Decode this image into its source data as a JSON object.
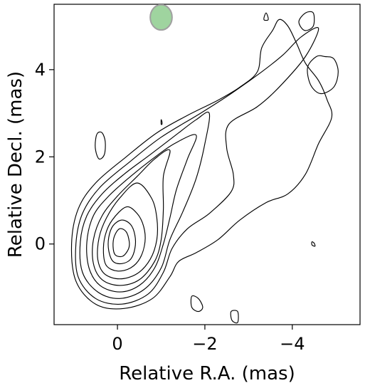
{
  "chart_data": {
    "type": "contour",
    "xlabel": "Relative R.A. (mas)",
    "ylabel": "Relative Decl. (mas)",
    "xlim": [
      1.45,
      -5.55
    ],
    "ylim": [
      -1.85,
      5.5
    ],
    "x_ticks": [
      0,
      -2,
      -4
    ],
    "x_tick_labels": [
      "0",
      "−2",
      "−4"
    ],
    "y_ticks": [
      0,
      2,
      4
    ],
    "y_tick_labels": [
      "0",
      "2",
      "4"
    ],
    "grid": false,
    "beam": {
      "x": -1.0,
      "y": 5.2,
      "major_mas": 0.58,
      "minor_mas": 0.5,
      "color": "#9fd49f",
      "edge_color": "#a0a0a0"
    },
    "core_contours": [
      [
        [
          -0.05,
          0.35
        ],
        [
          -0.2,
          0.28
        ],
        [
          -0.27,
          0.05
        ],
        [
          -0.25,
          -0.12
        ],
        [
          -0.12,
          -0.28
        ],
        [
          0.05,
          -0.25
        ],
        [
          0.1,
          -0.05
        ],
        [
          0.07,
          0.18
        ]
      ],
      [
        [
          -0.1,
          0.55
        ],
        [
          -0.3,
          0.45
        ],
        [
          -0.4,
          0.2
        ],
        [
          -0.4,
          -0.1
        ],
        [
          -0.3,
          -0.35
        ],
        [
          -0.1,
          -0.45
        ],
        [
          0.1,
          -0.4
        ],
        [
          0.2,
          -0.15
        ],
        [
          0.2,
          0.15
        ],
        [
          0.1,
          0.42
        ]
      ],
      [
        [
          -0.2,
          0.85
        ],
        [
          -0.45,
          0.7
        ],
        [
          -0.6,
          0.4
        ],
        [
          -0.63,
          0.05
        ],
        [
          -0.52,
          -0.32
        ],
        [
          -0.3,
          -0.55
        ],
        [
          0,
          -0.62
        ],
        [
          0.25,
          -0.5
        ],
        [
          0.32,
          -0.2
        ],
        [
          0.28,
          0.2
        ],
        [
          0.12,
          0.55
        ]
      ],
      [
        [
          -0.45,
          1.4
        ],
        [
          -0.78,
          1.05
        ],
        [
          -0.9,
          0.6
        ],
        [
          -0.9,
          0.1
        ],
        [
          -0.75,
          -0.35
        ],
        [
          -0.45,
          -0.68
        ],
        [
          -0.05,
          -0.8
        ],
        [
          0.3,
          -0.68
        ],
        [
          0.45,
          -0.35
        ],
        [
          0.42,
          0.15
        ],
        [
          0.25,
          0.6
        ],
        [
          -0.05,
          1.05
        ]
      ],
      [
        [
          -1.2,
          2.15
        ],
        [
          -1.05,
          1.55
        ],
        [
          -1.05,
          0.8
        ],
        [
          -1.0,
          0.1
        ],
        [
          -0.85,
          -0.4
        ],
        [
          -0.5,
          -0.82
        ],
        [
          -0.05,
          -0.95
        ],
        [
          0.35,
          -0.82
        ],
        [
          0.55,
          -0.45
        ],
        [
          0.55,
          0.1
        ],
        [
          0.35,
          0.65
        ],
        [
          0.0,
          1.1
        ],
        [
          -0.45,
          1.55
        ],
        [
          -0.85,
          1.95
        ]
      ],
      [
        [
          -1.8,
          2.5
        ],
        [
          -1.6,
          1.95
        ],
        [
          -1.35,
          1.25
        ],
        [
          -1.2,
          0.6
        ],
        [
          -1.05,
          0.0
        ],
        [
          -0.85,
          -0.55
        ],
        [
          -0.5,
          -0.95
        ],
        [
          -0.05,
          -1.1
        ],
        [
          0.4,
          -0.95
        ],
        [
          0.65,
          -0.55
        ],
        [
          0.7,
          0.05
        ],
        [
          0.55,
          0.65
        ],
        [
          0.2,
          1.1
        ],
        [
          -0.3,
          1.55
        ],
        [
          -0.8,
          1.95
        ],
        [
          -1.3,
          2.3
        ]
      ],
      [
        [
          -2.1,
          3.0
        ],
        [
          -2.0,
          2.3
        ],
        [
          -1.8,
          1.5
        ],
        [
          -1.5,
          0.75
        ],
        [
          -1.2,
          0.1
        ],
        [
          -1.0,
          -0.55
        ],
        [
          -0.6,
          -1.05
        ],
        [
          -0.05,
          -1.25
        ],
        [
          0.45,
          -1.1
        ],
        [
          0.8,
          -0.65
        ],
        [
          0.85,
          0.05
        ],
        [
          0.7,
          0.65
        ],
        [
          0.35,
          1.15
        ],
        [
          -0.15,
          1.6
        ],
        [
          -0.75,
          2.05
        ],
        [
          -1.4,
          2.55
        ],
        [
          -1.8,
          2.85
        ]
      ],
      [
        [
          -4.6,
          4.95
        ],
        [
          -4.3,
          4.3
        ],
        [
          -3.7,
          3.6
        ],
        [
          -3.2,
          3.15
        ],
        [
          -2.55,
          2.75
        ],
        [
          -2.5,
          2.2
        ],
        [
          -2.65,
          1.6
        ],
        [
          -2.6,
          1.2
        ],
        [
          -2.1,
          0.7
        ],
        [
          -1.6,
          0.35
        ],
        [
          -1.25,
          -0.1
        ],
        [
          -1.05,
          -0.65
        ],
        [
          -0.7,
          -1.15
        ],
        [
          -0.1,
          -1.38
        ],
        [
          0.5,
          -1.25
        ],
        [
          0.9,
          -0.75
        ],
        [
          0.95,
          0.0
        ],
        [
          0.8,
          0.7
        ],
        [
          0.4,
          1.3
        ],
        [
          -0.3,
          1.9
        ],
        [
          -1.0,
          2.45
        ],
        [
          -1.9,
          3.0
        ],
        [
          -2.6,
          3.45
        ],
        [
          -3.3,
          3.95
        ],
        [
          -3.8,
          4.35
        ],
        [
          -4.2,
          4.75
        ]
      ],
      [
        [
          -3.7,
          5.15
        ],
        [
          -3.9,
          5.0
        ],
        [
          -4.1,
          4.6
        ],
        [
          -4.3,
          4.15
        ],
        [
          -4.6,
          3.75
        ],
        [
          -4.8,
          3.3
        ],
        [
          -4.9,
          2.9
        ],
        [
          -4.6,
          2.3
        ],
        [
          -4.3,
          1.6
        ],
        [
          -3.9,
          1.15
        ],
        [
          -3.4,
          0.95
        ],
        [
          -2.8,
          0.55
        ],
        [
          -2.3,
          0.1
        ],
        [
          -1.8,
          -0.2
        ],
        [
          -1.4,
          -0.4
        ],
        [
          -1.2,
          -0.75
        ],
        [
          -0.8,
          -1.25
        ],
        [
          -0.15,
          -1.48
        ],
        [
          0.5,
          -1.38
        ],
        [
          0.95,
          -0.85
        ],
        [
          1.05,
          0.0
        ],
        [
          0.9,
          0.8
        ],
        [
          0.5,
          1.4
        ],
        [
          -0.2,
          2.0
        ],
        [
          -0.9,
          2.55
        ],
        [
          -1.6,
          2.95
        ],
        [
          -2.3,
          3.3
        ],
        [
          -2.8,
          3.6
        ],
        [
          -3.2,
          3.95
        ],
        [
          -3.3,
          4.5
        ],
        [
          -3.55,
          4.9
        ]
      ]
    ],
    "islands": [
      [
        [
          -4.75,
          4.3
        ],
        [
          -4.55,
          4.3
        ],
        [
          -4.35,
          4.05
        ],
        [
          -4.42,
          3.65
        ],
        [
          -4.65,
          3.45
        ],
        [
          -4.95,
          3.6
        ],
        [
          -5.05,
          3.95
        ],
        [
          -4.95,
          4.25
        ]
      ],
      [
        [
          -4.48,
          5.3
        ],
        [
          -4.3,
          5.3
        ],
        [
          -4.15,
          5.1
        ],
        [
          -4.28,
          4.9
        ],
        [
          -4.48,
          5.0
        ]
      ],
      [
        [
          0.45,
          2.55
        ],
        [
          0.35,
          2.55
        ],
        [
          0.28,
          2.35
        ],
        [
          0.3,
          2.05
        ],
        [
          0.42,
          1.95
        ],
        [
          0.5,
          2.15
        ],
        [
          0.5,
          2.4
        ]
      ],
      [
        [
          -3.45,
          5.15
        ],
        [
          -3.4,
          5.3
        ],
        [
          -3.35,
          5.15
        ]
      ],
      [
        [
          -4.45,
          5.6
        ],
        [
          -4.42,
          5.55
        ],
        [
          -4.47,
          5.55
        ]
      ],
      [
        [
          -1.7,
          -1.2
        ],
        [
          -1.85,
          -1.25
        ],
        [
          -1.95,
          -1.45
        ],
        [
          -1.85,
          -1.55
        ],
        [
          -1.7,
          -1.45
        ]
      ],
      [
        [
          -2.6,
          -1.55
        ],
        [
          -2.75,
          -1.55
        ],
        [
          -2.75,
          -1.8
        ],
        [
          -2.62,
          -1.75
        ]
      ],
      [
        [
          -4.45,
          0.05
        ],
        [
          -4.5,
          0.02
        ],
        [
          -4.52,
          -0.05
        ],
        [
          -4.45,
          -0.02
        ]
      ],
      [
        [
          -1.0,
          2.85
        ],
        [
          -1.02,
          2.8
        ],
        [
          -1.02,
          2.75
        ],
        [
          -1.0,
          2.75
        ]
      ]
    ]
  }
}
